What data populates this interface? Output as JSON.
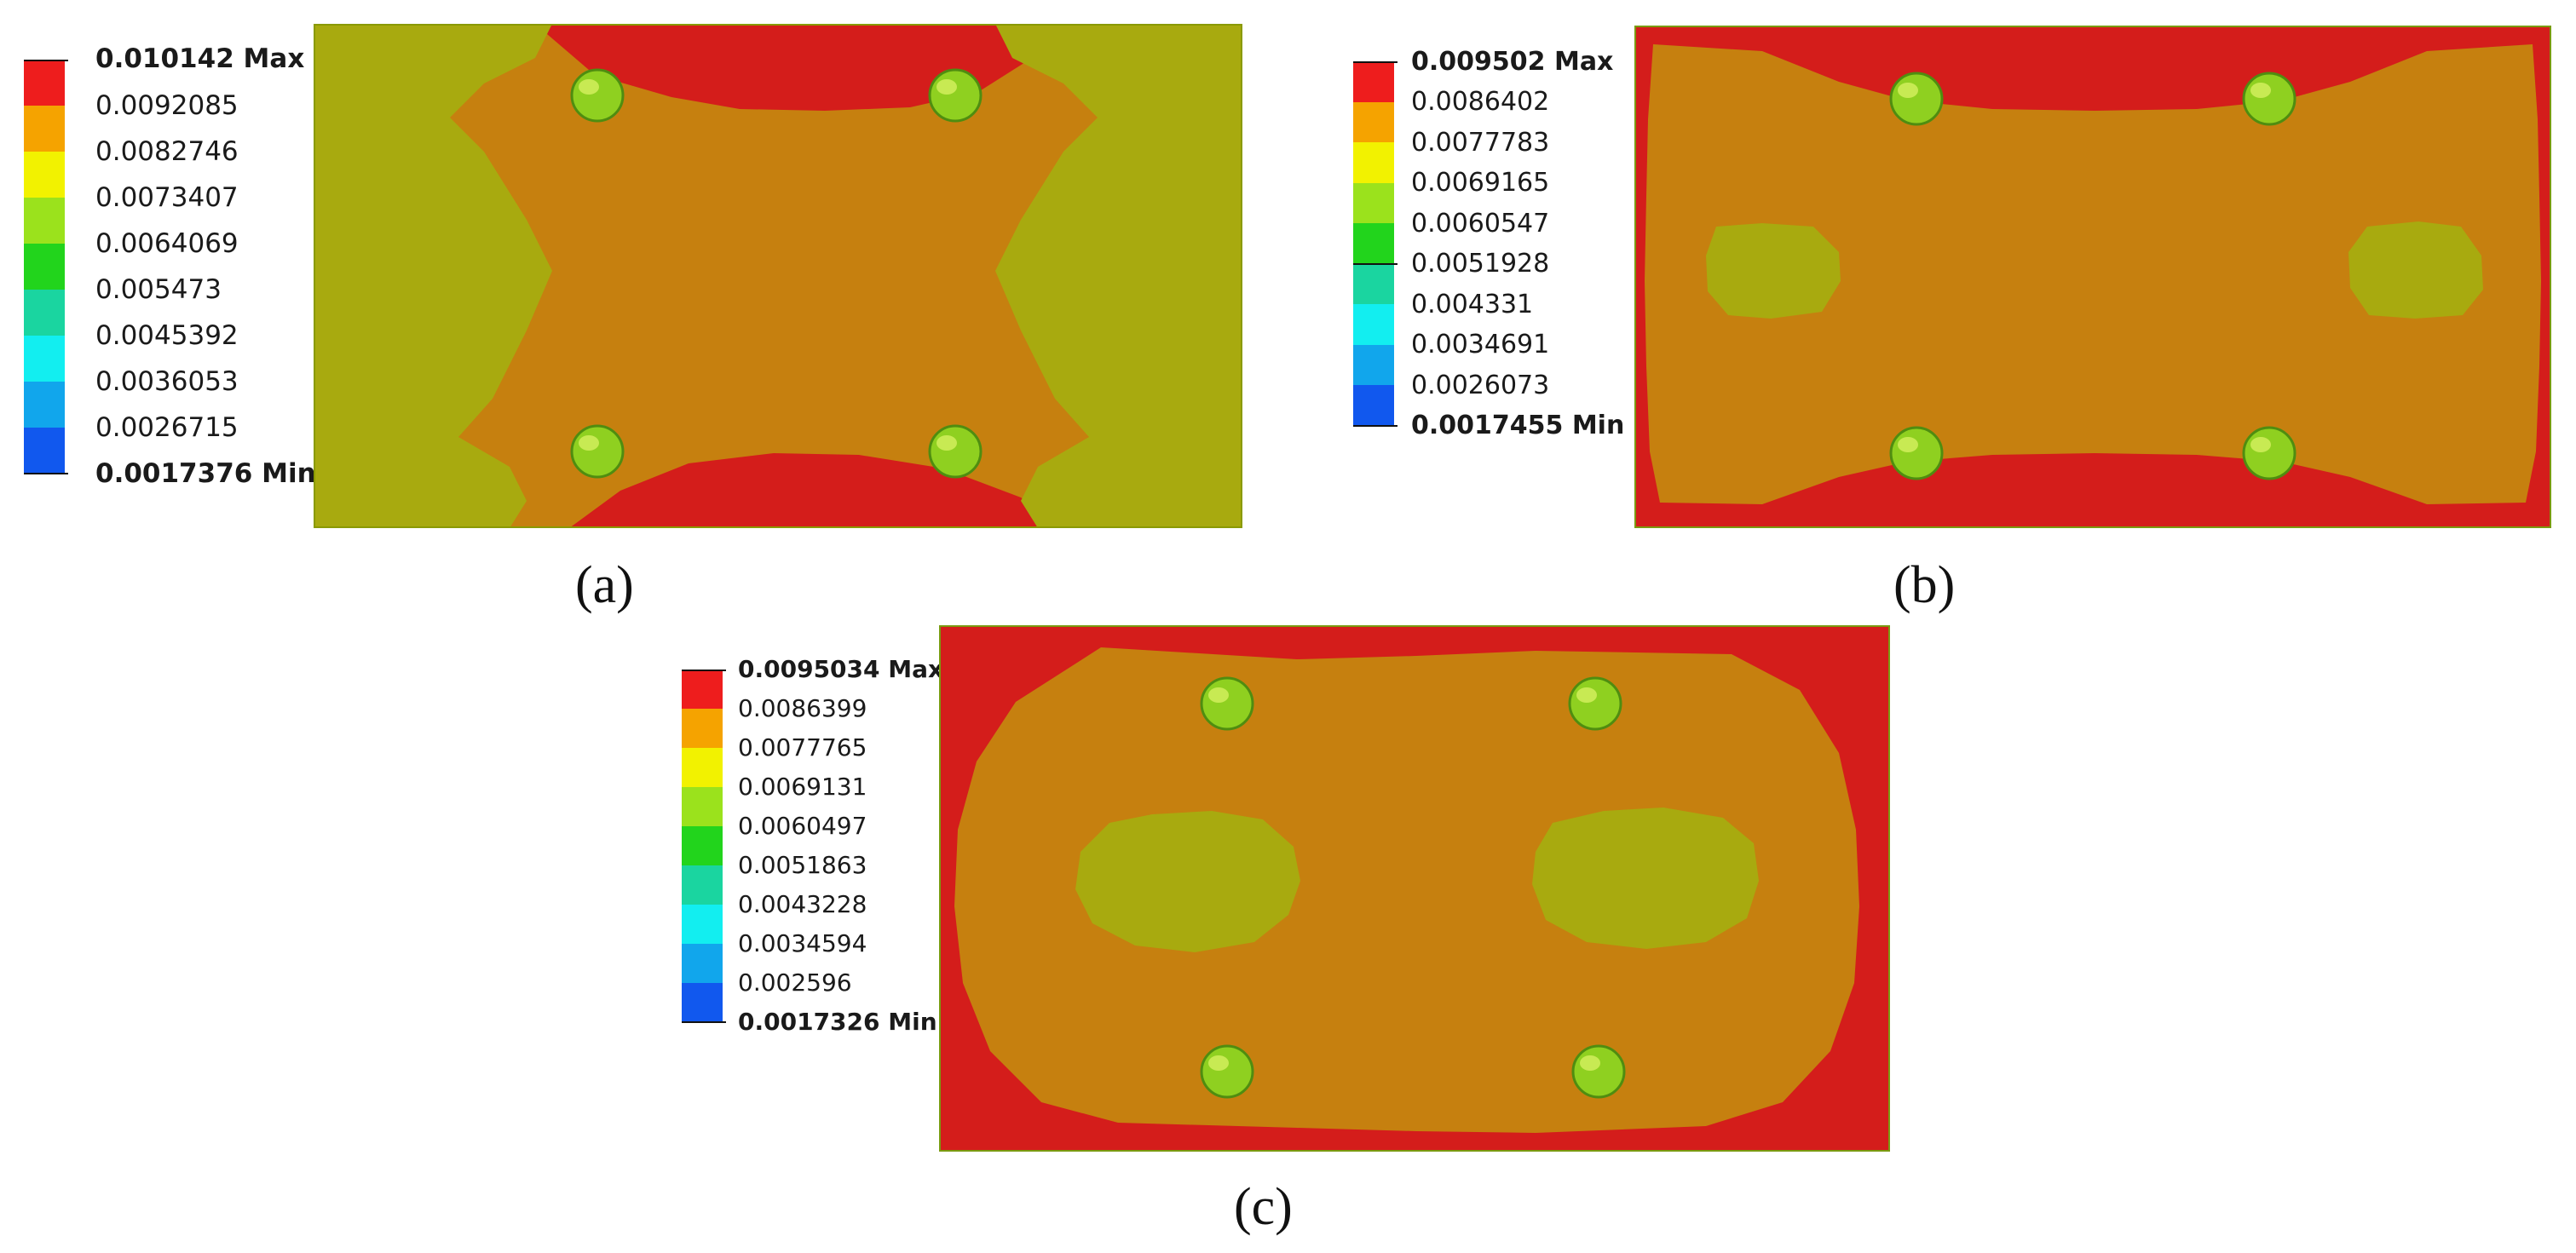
{
  "legend_colors": [
    "#ee1d1d",
    "#f5a300",
    "#f2f200",
    "#9be21c",
    "#22d41c",
    "#1ad5a0",
    "#12eef0",
    "#11a6ec",
    "#1158ee",
    "#0f12ee"
  ],
  "fill_colors": {
    "red": "#d41d1b",
    "orange": "#c6800f",
    "yellow_green": "#a8aa0f",
    "pin": "#8fd020",
    "pin_light": "#d6f060",
    "pin_dark": "#4f8d10"
  },
  "panels": [
    {
      "id": "a",
      "caption": "(a)",
      "legend": [
        "0.010142 Max",
        "0.0092085",
        "0.0082746",
        "0.0073407",
        "0.0064069",
        "0.005473",
        "0.0045392",
        "0.0036053",
        "0.0026715",
        "0.0017376 Min"
      ]
    },
    {
      "id": "b",
      "caption": "(b)",
      "legend": [
        "0.009502 Max",
        "0.0086402",
        "0.0077783",
        "0.0069165",
        "0.0060547",
        "0.0051928",
        "0.004331",
        "0.0034691",
        "0.0026073",
        "0.0017455 Min"
      ]
    },
    {
      "id": "c",
      "caption": "(c)",
      "legend": [
        "0.0095034 Max",
        "0.0086399",
        "0.0077765",
        "0.0069131",
        "0.0060497",
        "0.0051863",
        "0.0043228",
        "0.0034594",
        "0.002596",
        "0.0017326 Min"
      ]
    }
  ]
}
